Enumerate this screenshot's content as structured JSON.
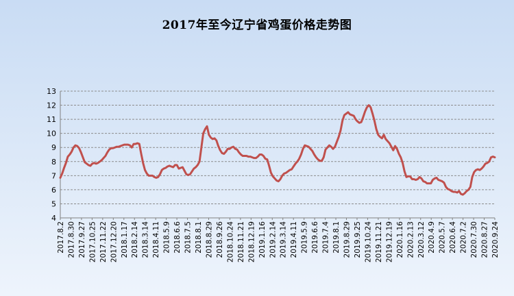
{
  "chart_data": {
    "type": "line",
    "title": "2017年至今辽宁省鸡蛋价格走势图",
    "xlabel": "",
    "ylabel": "",
    "ylim": [
      4,
      13
    ],
    "y_ticks": [
      4,
      5,
      6,
      7,
      8,
      9,
      10,
      11,
      12,
      13
    ],
    "grid": true,
    "legend": "none",
    "x_tick_labels": [
      "2017.8.2",
      "2017.8.30",
      "2017.9.27",
      "2017.10.25",
      "2017.11.22",
      "2017.12.20",
      "2018.1.17",
      "2018.2.14",
      "2018.3.14",
      "2018.4.11",
      "2018.5.9",
      "2018.6.6",
      "2018.7.5",
      "2018.8.1",
      "2018.8.29",
      "2018.9.26",
      "2018.10.24",
      "2018.11.21",
      "2018.12.19",
      "2019.1.16",
      "2019.2.14",
      "2019.3.14",
      "2019.4.11",
      "2019.5.9",
      "2019.6.6",
      "2019.7.4",
      "2019.8.1",
      "2019.8.29",
      "2019.9.25",
      "2019.10.24",
      "2019.11.21",
      "2019.12.19",
      "2020.1.16",
      "2020.2.13",
      "2020.3.12",
      "2020.4.9",
      "2020.5.7",
      "2020.6.4",
      "2020.7.2",
      "2020.7.30",
      "2020.8.27",
      "2020.9.24"
    ],
    "colors": {
      "line": "#c0504d",
      "grid": "#8c8c8c",
      "axis": "#808080"
    },
    "series": [
      {
        "name": "",
        "values": [
          6.85,
          7.15,
          7.55,
          7.9,
          8.35,
          8.5,
          8.7,
          9.0,
          9.15,
          9.1,
          8.95,
          8.65,
          8.3,
          7.95,
          7.85,
          7.75,
          7.7,
          7.85,
          7.9,
          7.85,
          7.9,
          8.0,
          8.1,
          8.25,
          8.4,
          8.65,
          8.85,
          8.95,
          8.95,
          9.0,
          9.05,
          9.05,
          9.1,
          9.15,
          9.2,
          9.2,
          9.2,
          9.15,
          9.0,
          9.25,
          9.25,
          9.3,
          9.25,
          8.55,
          7.9,
          7.4,
          7.15,
          7.0,
          7.0,
          7.0,
          6.9,
          6.85,
          6.9,
          7.1,
          7.4,
          7.5,
          7.55,
          7.65,
          7.7,
          7.65,
          7.6,
          7.75,
          7.75,
          7.5,
          7.55,
          7.6,
          7.35,
          7.1,
          7.05,
          7.1,
          7.3,
          7.5,
          7.6,
          7.75,
          8.0,
          9.0,
          10.0,
          10.3,
          10.5,
          9.9,
          9.7,
          9.6,
          9.65,
          9.5,
          9.1,
          8.8,
          8.6,
          8.55,
          8.7,
          8.9,
          8.9,
          9.0,
          9.05,
          8.9,
          8.85,
          8.65,
          8.5,
          8.4,
          8.4,
          8.4,
          8.35,
          8.35,
          8.3,
          8.25,
          8.25,
          8.35,
          8.5,
          8.5,
          8.4,
          8.2,
          8.15,
          7.7,
          7.2,
          6.95,
          6.8,
          6.65,
          6.6,
          6.75,
          7.0,
          7.15,
          7.2,
          7.3,
          7.4,
          7.45,
          7.65,
          7.85,
          8.0,
          8.2,
          8.5,
          8.9,
          9.15,
          9.1,
          9.05,
          8.9,
          8.75,
          8.5,
          8.3,
          8.15,
          8.05,
          8.05,
          8.3,
          8.85,
          9.0,
          9.15,
          9.05,
          8.9,
          9.05,
          9.4,
          9.75,
          10.2,
          10.9,
          11.3,
          11.4,
          11.5,
          11.35,
          11.3,
          11.25,
          11.0,
          10.85,
          10.75,
          10.8,
          11.15,
          11.55,
          11.85,
          12.0,
          11.85,
          11.4,
          10.9,
          10.3,
          9.9,
          9.75,
          9.65,
          9.9,
          9.6,
          9.45,
          9.3,
          9.05,
          8.8,
          9.1,
          8.9,
          8.55,
          8.3,
          7.9,
          7.3,
          6.9,
          6.95,
          6.95,
          6.75,
          6.75,
          6.7,
          6.75,
          6.9,
          6.8,
          6.6,
          6.55,
          6.45,
          6.45,
          6.45,
          6.7,
          6.8,
          6.85,
          6.7,
          6.65,
          6.6,
          6.5,
          6.2,
          6.05,
          6.0,
          5.9,
          5.85,
          5.85,
          5.8,
          5.9,
          5.7,
          5.65,
          5.75,
          5.9,
          6.0,
          6.2,
          6.9,
          7.25,
          7.4,
          7.45,
          7.4,
          7.5,
          7.65,
          7.85,
          7.9,
          8.0,
          8.3,
          8.35,
          8.3
        ]
      }
    ]
  }
}
